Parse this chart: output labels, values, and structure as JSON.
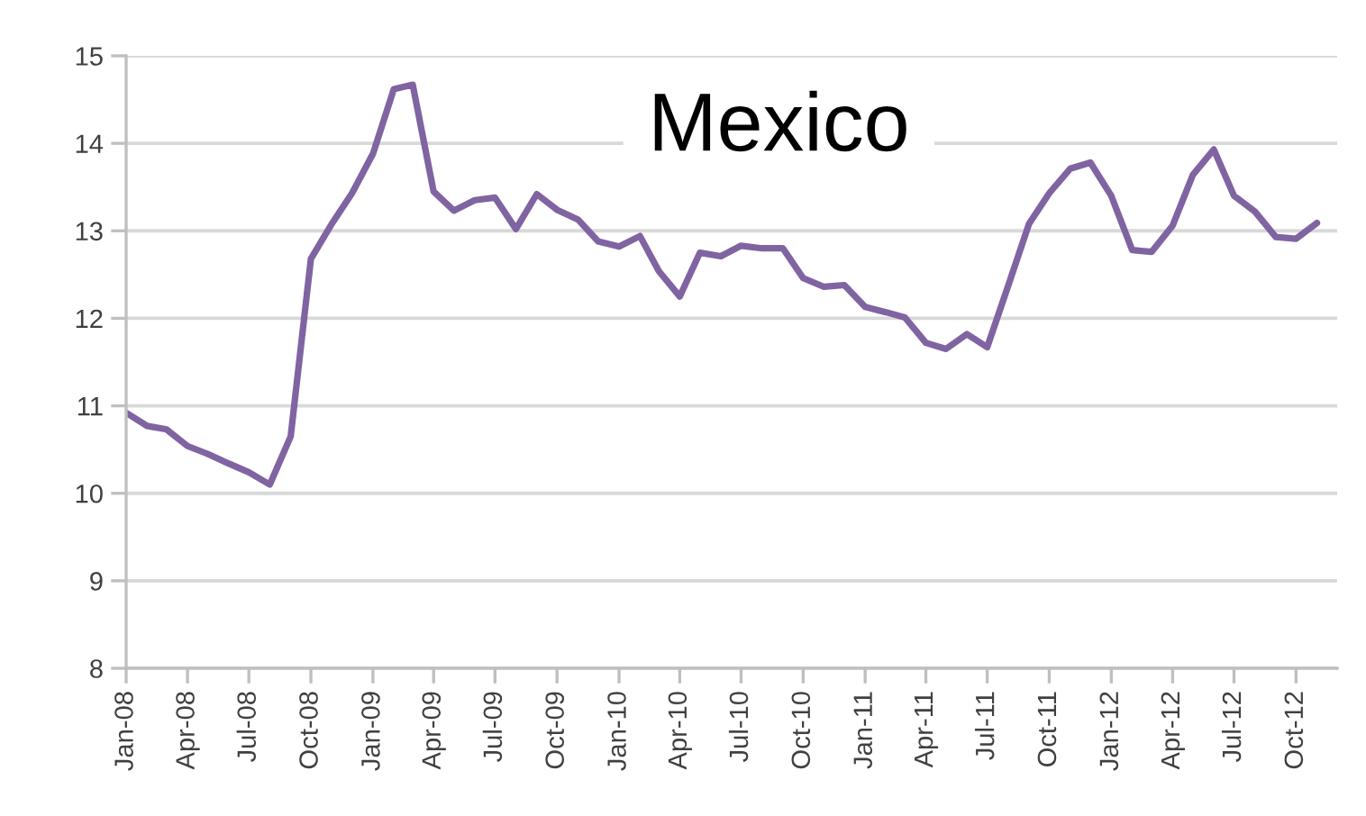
{
  "chart_data": {
    "type": "line",
    "title": "Mexico",
    "color": "#8064a2",
    "x": [
      "2008-01",
      "2008-02",
      "2008-03",
      "2008-04",
      "2008-05",
      "2008-06",
      "2008-07",
      "2008-08",
      "2008-09",
      "2008-10",
      "2008-11",
      "2008-12",
      "2009-01",
      "2009-02",
      "2009-03",
      "2009-04",
      "2009-05",
      "2009-06",
      "2009-07",
      "2009-08",
      "2009-09",
      "2009-10",
      "2009-11",
      "2009-12",
      "2010-01",
      "2010-02",
      "2010-03",
      "2010-04",
      "2010-05",
      "2010-06",
      "2010-07",
      "2010-08",
      "2010-09",
      "2010-10",
      "2010-11",
      "2010-12",
      "2011-01",
      "2011-02",
      "2011-03",
      "2011-04",
      "2011-05",
      "2011-06",
      "2011-07",
      "2011-08",
      "2011-09",
      "2011-10",
      "2011-11",
      "2011-12",
      "2012-01",
      "2012-02",
      "2012-03",
      "2012-04",
      "2012-05",
      "2012-06",
      "2012-07",
      "2012-08",
      "2012-09",
      "2012-10",
      "2012-11"
    ],
    "values": [
      10.92,
      10.77,
      10.73,
      10.54,
      10.45,
      10.34,
      10.24,
      10.1,
      10.65,
      12.68,
      13.08,
      13.43,
      13.88,
      14.62,
      14.67,
      13.45,
      13.23,
      13.35,
      13.38,
      13.02,
      13.42,
      13.24,
      13.13,
      12.88,
      12.82,
      12.94,
      12.54,
      12.25,
      12.75,
      12.71,
      12.83,
      12.8,
      12.8,
      12.46,
      12.36,
      12.38,
      12.13,
      12.07,
      12.01,
      11.72,
      11.65,
      11.82,
      11.67,
      12.37,
      13.08,
      13.43,
      13.71,
      13.78,
      13.4,
      12.78,
      12.76,
      13.06,
      13.64,
      13.93,
      13.4,
      13.22,
      12.93,
      12.91,
      13.09
    ],
    "xlim": [
      "2008-01",
      "2012-12"
    ],
    "xticks": [
      {
        "value": "2008-01",
        "label": "Jan-08"
      },
      {
        "value": "2008-04",
        "label": "Apr-08"
      },
      {
        "value": "2008-07",
        "label": "Jul-08"
      },
      {
        "value": "2008-10",
        "label": "Oct-08"
      },
      {
        "value": "2009-01",
        "label": "Jan-09"
      },
      {
        "value": "2009-04",
        "label": "Apr-09"
      },
      {
        "value": "2009-07",
        "label": "Jul-09"
      },
      {
        "value": "2009-10",
        "label": "Oct-09"
      },
      {
        "value": "2010-01",
        "label": "Jan-10"
      },
      {
        "value": "2010-04",
        "label": "Apr-10"
      },
      {
        "value": "2010-07",
        "label": "Jul-10"
      },
      {
        "value": "2010-10",
        "label": "Oct-10"
      },
      {
        "value": "2011-01",
        "label": "Jan-11"
      },
      {
        "value": "2011-04",
        "label": "Apr-11"
      },
      {
        "value": "2011-07",
        "label": "Jul-11"
      },
      {
        "value": "2011-10",
        "label": "Oct-11"
      },
      {
        "value": "2012-01",
        "label": "Jan-12"
      },
      {
        "value": "2012-04",
        "label": "Apr-12"
      },
      {
        "value": "2012-07",
        "label": "Jul-12"
      },
      {
        "value": "2012-10",
        "label": "Oct-12"
      }
    ],
    "ylim": [
      8,
      15
    ],
    "yticks": [
      8,
      9,
      10,
      11,
      12,
      13,
      14,
      15
    ],
    "grid": "y"
  }
}
